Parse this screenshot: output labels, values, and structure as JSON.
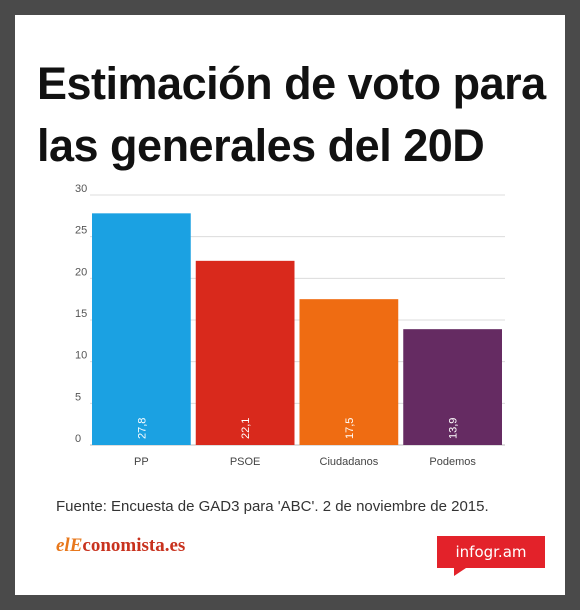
{
  "title": "Estimación de voto para las generales del 20D",
  "source": "Fuente: Encuesta de GAD3 para 'ABC'.  2 de noviembre de 2015.",
  "brand": {
    "part1": "elE",
    "part2": "conomista.es"
  },
  "badge": "infogr.am",
  "chart_data": {
    "type": "bar",
    "categories": [
      "PP",
      "PSOE",
      "Ciudadanos",
      "Podemos"
    ],
    "values": [
      27.8,
      22.1,
      17.5,
      13.9
    ],
    "value_labels": [
      "27,8",
      "22,1",
      "17,5",
      "13,9"
    ],
    "colors": [
      "#1ba1e2",
      "#d9291c",
      "#ef6c12",
      "#652b62"
    ],
    "yticks": [
      0,
      5,
      10,
      15,
      20,
      25,
      30
    ],
    "ylim": [
      0,
      30
    ],
    "grid": true
  }
}
